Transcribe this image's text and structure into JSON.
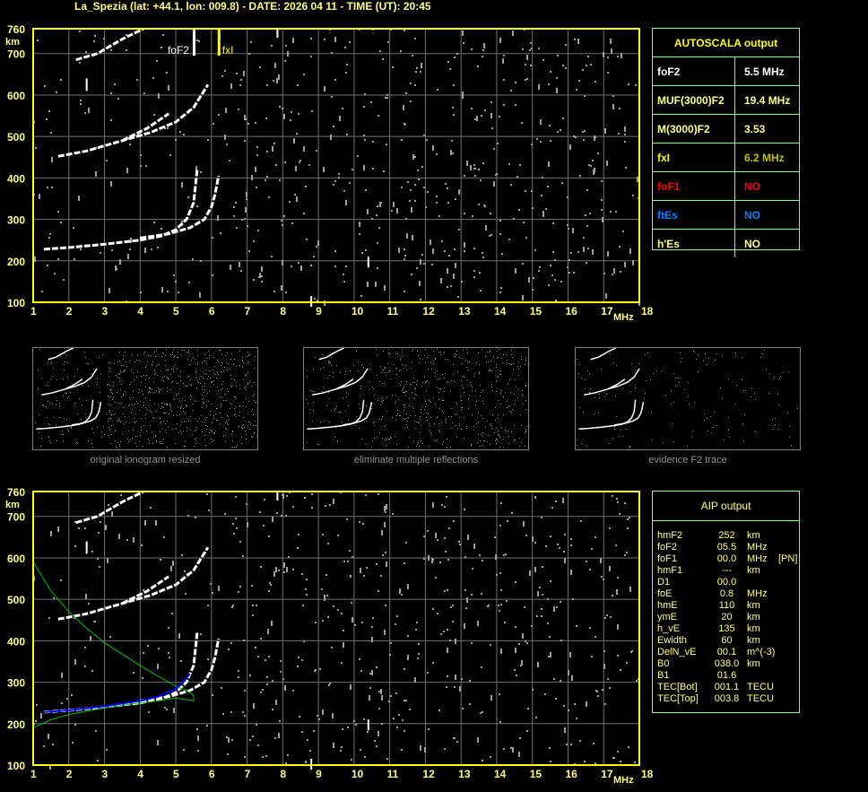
{
  "title": "La_Spezia (lat: +44.1, lon: 009.8) - DATE: 2026 04 11 - TIME (UT): 20:45",
  "chart_data": [
    {
      "type": "scatter",
      "name_in_page": "ionogram-top",
      "xlabel": "MHz",
      "ylabel": "km",
      "xlim": [
        1,
        18
      ],
      "ylim": [
        100,
        760
      ],
      "xticks": [
        1,
        2,
        3,
        4,
        5,
        6,
        7,
        8,
        9,
        10,
        11,
        12,
        13,
        14,
        15,
        16,
        17,
        18
      ],
      "yticks": [
        100,
        200,
        300,
        400,
        500,
        600,
        700,
        760
      ],
      "grid": true,
      "markers": [
        {
          "label": "foF2",
          "x": 5.5,
          "color": "#ffffff"
        },
        {
          "label": "fxI",
          "x": 6.2,
          "color": "#ffff00"
        }
      ],
      "traces": [
        {
          "x": [
            1.3,
            2,
            3,
            4,
            4.6,
            5.0,
            5.3,
            5.5,
            5.6
          ],
          "y": [
            228,
            232,
            240,
            250,
            260,
            275,
            300,
            340,
            420
          ]
        },
        {
          "x": [
            4,
            4.8,
            5.4,
            5.8,
            6.0,
            6.1,
            6.2
          ],
          "y": [
            255,
            265,
            280,
            300,
            330,
            360,
            405
          ]
        },
        {
          "x": [
            1.7,
            2.5,
            3.5,
            4.3,
            5,
            5.5,
            5.9
          ],
          "y": [
            452,
            465,
            490,
            510,
            535,
            570,
            625
          ]
        },
        {
          "x": [
            3.5,
            4.2,
            4.8
          ],
          "y": [
            490,
            520,
            555
          ]
        },
        {
          "x": [
            2.2,
            2.8,
            3.5,
            4.1
          ],
          "y": [
            685,
            700,
            735,
            760
          ]
        }
      ]
    },
    {
      "type": "scatter",
      "name_in_page": "ionogram-bottom",
      "xlabel": "MHz",
      "ylabel": "km",
      "xlim": [
        1,
        18
      ],
      "ylim": [
        100,
        760
      ],
      "xticks": [
        1,
        2,
        3,
        4,
        5,
        6,
        7,
        8,
        9,
        10,
        11,
        12,
        13,
        14,
        15,
        16,
        17,
        18
      ],
      "yticks": [
        100,
        200,
        300,
        400,
        500,
        600,
        700,
        760
      ],
      "grid": true,
      "profile": {
        "color": "#00c000",
        "x": [
          1,
          1.5,
          2,
          2.5,
          3,
          4,
          4.5,
          5,
          5.3,
          5.5,
          5.5,
          5.3,
          5,
          4.5,
          4,
          3,
          2,
          1.5,
          1
        ],
        "y": [
          590,
          520,
          470,
          430,
          395,
          340,
          315,
          290,
          280,
          268,
          255,
          258,
          262,
          255,
          250,
          238,
          222,
          210,
          190
        ]
      },
      "fit": {
        "color": "#0000ff",
        "x": [
          1.3,
          2,
          3,
          4,
          4.5,
          5,
          5.2,
          5.4
        ],
        "y": [
          228,
          232,
          242,
          255,
          265,
          285,
          300,
          320
        ]
      }
    }
  ],
  "autoscala": {
    "title": "AUTOSCALA output",
    "rows": [
      {
        "k": "foF2",
        "v": "5.5 MHz",
        "kc": "#ffffff",
        "vc": "#ffffff"
      },
      {
        "k": "MUF(3000)F2",
        "v": "19.4 MHz",
        "kc": "#ffff80",
        "vc": "#ffff80"
      },
      {
        "k": "M(3000)F2",
        "v": "3.53",
        "kc": "#ffff80",
        "vc": "#ffff80"
      },
      {
        "k": "fxI",
        "v": "6.2 MHz",
        "kc": "#ffff00",
        "vc": "#c0c000"
      },
      {
        "k": "foF1",
        "v": "NO",
        "kc": "#ff0000",
        "vc": "#ff0000"
      },
      {
        "k": "ftEs",
        "v": "NO",
        "kc": "#0080ff",
        "vc": "#0080ff"
      },
      {
        "k": "h'Es",
        "v": "NO",
        "kc": "#ffff80",
        "vc": "#ffff80"
      }
    ]
  },
  "thumbs": [
    "original ionogram resized",
    "eliminate multiple reflections",
    "evidence F2 trace"
  ],
  "aip": {
    "title": "AIP output",
    "rows": [
      [
        "hmF2",
        "252",
        "km",
        ""
      ],
      [
        "foF2",
        "05.5",
        "MHz",
        ""
      ],
      [
        "foF1",
        "00.0",
        "MHz",
        "[PN]"
      ],
      [
        "hmF1",
        "---",
        "km",
        ""
      ],
      [
        "D1",
        "00.0",
        "",
        ""
      ],
      [
        "foE",
        "0.8",
        "MHz",
        ""
      ],
      [
        "hmE",
        "110",
        "km",
        ""
      ],
      [
        "ymE",
        "20",
        "km",
        ""
      ],
      [
        "h_vE",
        "135",
        "km",
        ""
      ],
      [
        "Ewidth",
        "60",
        "km",
        ""
      ],
      [
        "DelN_vE",
        "00.1",
        "m^(-3)",
        ""
      ],
      [
        "B0",
        "038.0",
        "km",
        ""
      ],
      [
        "B1",
        "01.6",
        "",
        ""
      ],
      [
        "TEC[Bot]",
        "001.1",
        "TECU",
        ""
      ],
      [
        "TEC[Top]",
        "003.8",
        "TECU",
        ""
      ]
    ]
  }
}
